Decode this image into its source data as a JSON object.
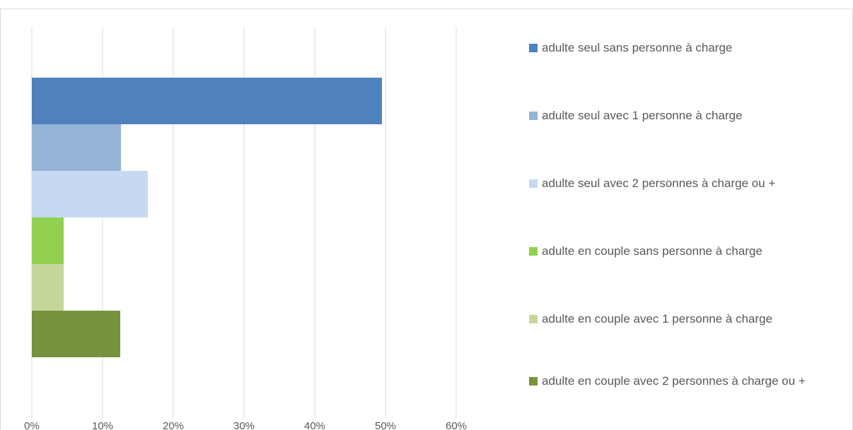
{
  "chart_data": {
    "type": "bar",
    "orientation": "horizontal",
    "x_axis": {
      "ticks": [
        "0%",
        "10%",
        "20%",
        "30%",
        "40%",
        "50%",
        "60%"
      ],
      "range": [
        0,
        0.6
      ]
    },
    "grid": "vertical",
    "legend_position": "right",
    "series": [
      {
        "name": "adulte seul sans personne à charge",
        "value": 0.495,
        "color": "#4f81bd"
      },
      {
        "name": "adulte seul avec 1 personne à charge",
        "value": 0.126,
        "color": "#95b3d7"
      },
      {
        "name": "adulte seul avec 2 personnes à charge ou +",
        "value": 0.164,
        "color": "#c6d9f1"
      },
      {
        "name": "adulte en couple sans personne à charge",
        "value": 0.045,
        "color": "#92d050"
      },
      {
        "name": "adulte en couple avec 1 personne à charge",
        "value": 0.045,
        "color": "#c4d79b"
      },
      {
        "name": "adulte en couple avec 2 personnes à charge ou +",
        "value": 0.125,
        "color": "#77933c"
      }
    ]
  }
}
